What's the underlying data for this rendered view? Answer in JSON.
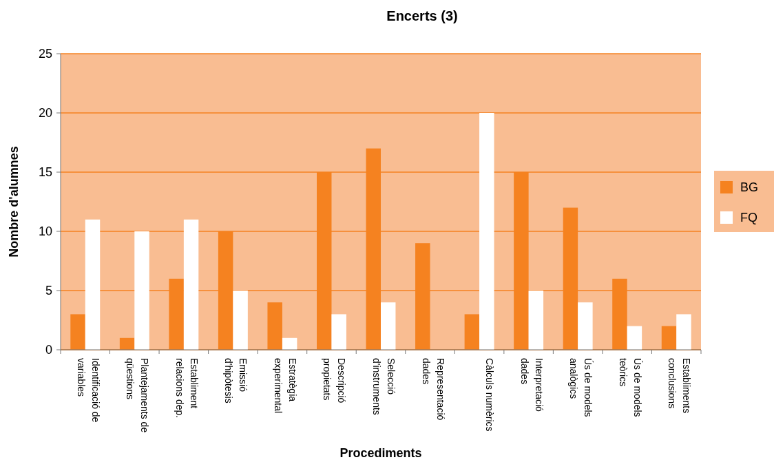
{
  "chart_data": {
    "type": "bar",
    "title": "Encerts (3)",
    "xlabel": "Procediments",
    "ylabel": "Nombre d'alumnes",
    "categories": [
      "Identificació de\nvariables",
      "Plantejaments de\nqüestions",
      "Establiment\nrelacions dep.",
      "Emissió\nd'hipòtesis",
      "Estratègia\nexperimental",
      "Descripció\npropietats",
      "Selecció\nd'instruments",
      "Representació\ndades",
      "Càlculs numèrics",
      "Interpretació\ndades",
      "Ús de models\nanalògics",
      "Ús de models\nteòrics",
      "Establiments\nconclusions"
    ],
    "series": [
      {
        "name": "BG",
        "color": "#f58220",
        "values": [
          3,
          1,
          6,
          10,
          4,
          15,
          17,
          9,
          3,
          15,
          12,
          6,
          2
        ]
      },
      {
        "name": "FQ",
        "color": "#ffffff",
        "values": [
          11,
          10,
          11,
          5,
          1,
          3,
          4,
          0,
          20,
          5,
          4,
          2,
          3
        ]
      }
    ],
    "ylim": [
      0,
      25
    ],
    "yticks": [
      0,
      5,
      10,
      15,
      20,
      25
    ],
    "grid": "y",
    "legend": "right"
  }
}
